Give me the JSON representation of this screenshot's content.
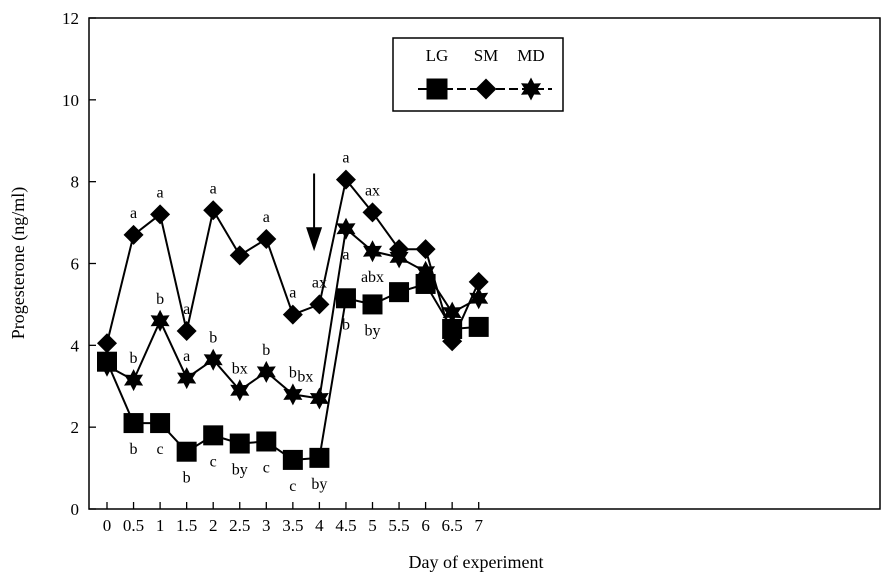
{
  "chart_data": {
    "type": "line",
    "xlabel": "Day of experiment",
    "ylabel": "Progesterone (ng/ml)",
    "xlim": [
      0,
      7
    ],
    "ylim": [
      0,
      12
    ],
    "x_ticks": [
      "0",
      "0.5",
      "1",
      "1.5",
      "2",
      "2.5",
      "3",
      "3.5",
      "4",
      "4.5",
      "5",
      "5.5",
      "6",
      "6.5",
      "7"
    ],
    "y_ticks": [
      "0",
      "2",
      "4",
      "6",
      "8",
      "10",
      "12"
    ],
    "grid": false,
    "legend_position": "top-center",
    "x": [
      0,
      0.5,
      1,
      1.5,
      2,
      2.5,
      3,
      3.5,
      4,
      4.5,
      5,
      5.5,
      6,
      6.5,
      7
    ],
    "series": [
      {
        "name": "LG",
        "marker": "square",
        "values": [
          3.6,
          2.1,
          2.1,
          1.4,
          1.8,
          1.6,
          1.65,
          1.2,
          1.25,
          5.15,
          5.0,
          5.3,
          5.5,
          4.4,
          4.45
        ],
        "annotations": [
          {
            "x": 0.5,
            "y": 2.1,
            "text": "b",
            "pos": "below"
          },
          {
            "x": 1,
            "y": 2.1,
            "text": "c",
            "pos": "below"
          },
          {
            "x": 1.5,
            "y": 1.4,
            "text": "b",
            "pos": "below"
          },
          {
            "x": 2,
            "y": 1.8,
            "text": "c",
            "pos": "below"
          },
          {
            "x": 2.5,
            "y": 1.6,
            "text": "by",
            "pos": "below"
          },
          {
            "x": 3,
            "y": 1.65,
            "text": "c",
            "pos": "below"
          },
          {
            "x": 3.5,
            "y": 1.2,
            "text": "c",
            "pos": "below"
          },
          {
            "x": 4,
            "y": 1.25,
            "text": "by",
            "pos": "below"
          },
          {
            "x": 4.5,
            "y": 5.15,
            "text": "b",
            "pos": "below"
          },
          {
            "x": 5,
            "y": 5.0,
            "text": "by",
            "pos": "below"
          }
        ]
      },
      {
        "name": "SM",
        "marker": "diamond",
        "values": [
          4.05,
          6.7,
          7.2,
          4.35,
          7.3,
          6.2,
          6.6,
          4.75,
          5.0,
          8.05,
          7.25,
          6.35,
          6.35,
          4.1,
          5.55
        ],
        "annotations": [
          {
            "x": 0.5,
            "y": 6.7,
            "text": "a",
            "pos": "above"
          },
          {
            "x": 1,
            "y": 7.2,
            "text": "a",
            "pos": "above"
          },
          {
            "x": 1.5,
            "y": 4.35,
            "text": "a",
            "pos": "above"
          },
          {
            "x": 2,
            "y": 7.3,
            "text": "a",
            "pos": "above"
          },
          {
            "x": 3,
            "y": 6.6,
            "text": "a",
            "pos": "above"
          },
          {
            "x": 3.5,
            "y": 4.75,
            "text": "a",
            "pos": "above"
          },
          {
            "x": 4,
            "y": 5.0,
            "text": "ax",
            "pos": "above"
          },
          {
            "x": 4.5,
            "y": 8.05,
            "text": "a",
            "pos": "above"
          },
          {
            "x": 5,
            "y": 7.25,
            "text": "ax",
            "pos": "above"
          }
        ]
      },
      {
        "name": "MD",
        "marker": "star",
        "values": [
          3.5,
          3.15,
          4.6,
          3.2,
          3.65,
          2.9,
          3.35,
          2.8,
          2.7,
          6.85,
          6.3,
          6.15,
          5.8,
          4.8,
          5.15
        ],
        "annotations": [
          {
            "x": 0.5,
            "y": 3.15,
            "text": "b",
            "pos": "above"
          },
          {
            "x": 1,
            "y": 4.6,
            "text": "b",
            "pos": "above"
          },
          {
            "x": 1.5,
            "y": 3.2,
            "text": "a",
            "pos": "above"
          },
          {
            "x": 2,
            "y": 3.65,
            "text": "b",
            "pos": "above"
          },
          {
            "x": 2.5,
            "y": 2.9,
            "text": "bx",
            "pos": "above"
          },
          {
            "x": 3,
            "y": 3.35,
            "text": "b",
            "pos": "above"
          },
          {
            "x": 3.5,
            "y": 2.8,
            "text": "b",
            "pos": "above"
          },
          {
            "x": 4,
            "y": 2.7,
            "text": "bx",
            "pos": "above-left"
          },
          {
            "x": 4.5,
            "y": 6.85,
            "text": "a",
            "pos": "below"
          },
          {
            "x": 5,
            "y": 6.3,
            "text": "abx",
            "pos": "below"
          }
        ]
      }
    ],
    "arrow": {
      "x": 3.9,
      "y_from": 8.2,
      "y_to": 6.3
    }
  }
}
